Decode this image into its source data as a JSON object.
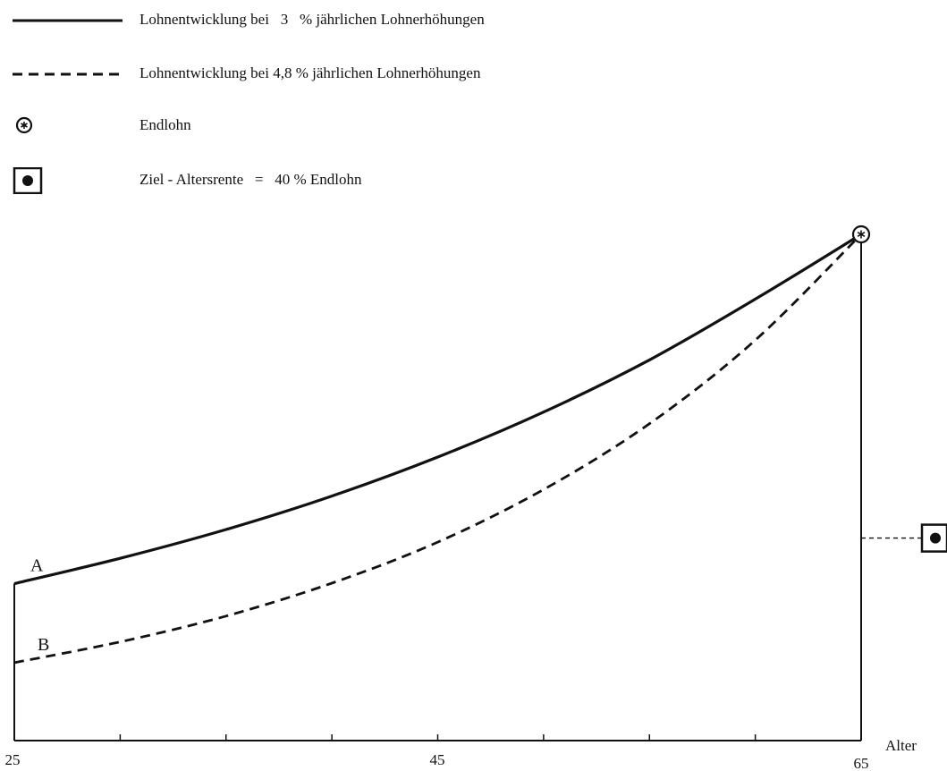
{
  "legend": {
    "items": [
      {
        "key": "solid",
        "symbol": "solid-line",
        "label": "Lohnentwicklung bei   3   % jährlichen Lohnerhöhungen"
      },
      {
        "key": "dashed",
        "symbol": "dashed-line",
        "label": "Lohnentwicklung bei 4,8 % jährlichen Lohnerhöhungen"
      },
      {
        "key": "endlohn",
        "symbol": "circled-asterisk",
        "label": "Endlohn"
      },
      {
        "key": "ziel",
        "symbol": "boxed-dot",
        "label": "Ziel - Altersrente   =   40 % Endlohn"
      }
    ]
  },
  "chart_data": {
    "type": "line",
    "title": "",
    "xlabel": "Alter",
    "ylabel": "",
    "x_ticks": [
      25,
      30,
      35,
      40,
      45,
      50,
      55,
      60,
      65
    ],
    "x_tick_labels": [
      "25",
      "45",
      "65"
    ],
    "xlim": [
      25,
      65
    ],
    "ylim": [
      0,
      100
    ],
    "grid": false,
    "legend_position": "top-left",
    "series": [
      {
        "label": "A",
        "style": "solid",
        "x": [
          25,
          30,
          35,
          40,
          45,
          50,
          55,
          60,
          65
        ],
        "y": [
          31.0,
          36.0,
          41.7,
          48.3,
          56.0,
          64.9,
          75.2,
          87.2,
          100
        ]
      },
      {
        "label": "B",
        "style": "dashed",
        "x": [
          25,
          30,
          35,
          40,
          45,
          50,
          55,
          60,
          65
        ],
        "y": [
          15.4,
          19.5,
          24.6,
          31.1,
          39.2,
          49.6,
          62.6,
          79.1,
          100
        ]
      }
    ],
    "annotations": [
      {
        "type": "endlohn-marker",
        "x": 65,
        "y": 100
      },
      {
        "type": "ziel-marker",
        "x": 65,
        "y": 40
      }
    ],
    "colors": {
      "ink": "#111111",
      "background": "#ffffff"
    }
  }
}
